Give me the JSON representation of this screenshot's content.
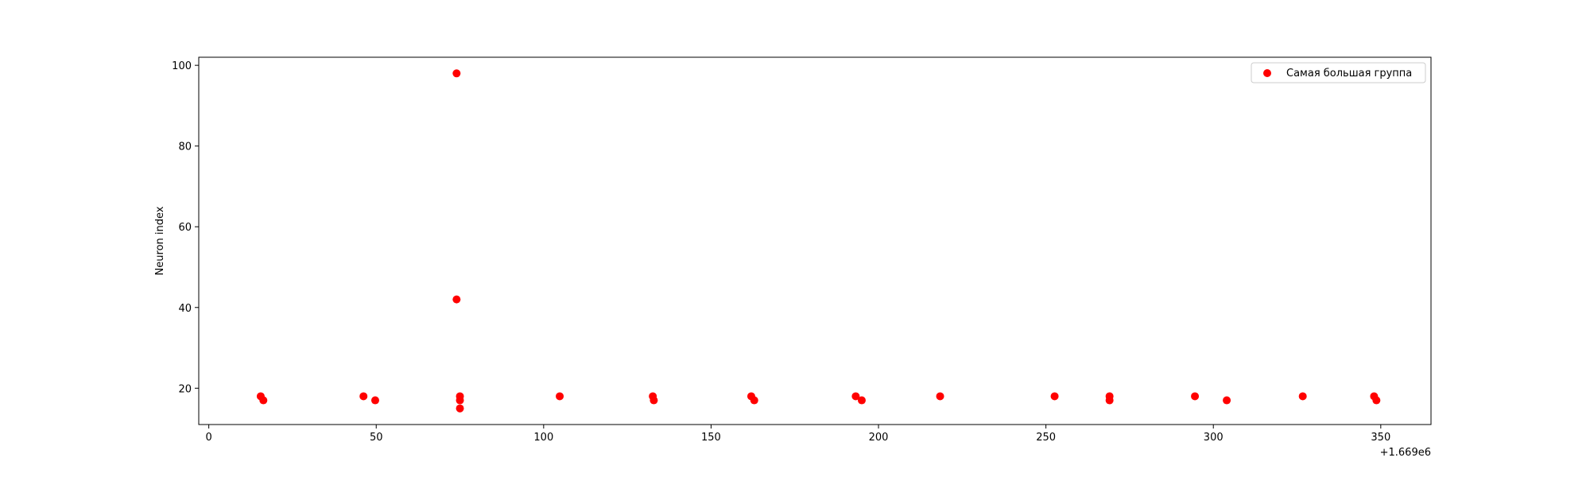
{
  "chart_data": {
    "type": "scatter",
    "xlabel": "",
    "ylabel": "Neuron index",
    "x_offset_label": "+1.669e6",
    "xlim": [
      -3,
      365
    ],
    "ylim": [
      11,
      102
    ],
    "xticks": [
      0,
      50,
      100,
      150,
      200,
      250,
      300,
      350
    ],
    "yticks": [
      20,
      40,
      60,
      80,
      100
    ],
    "legend_position": "top-right",
    "grid": false,
    "series": [
      {
        "name": "Самая большая группа",
        "color": "#ff0000",
        "points": [
          [
            15.5,
            18
          ],
          [
            16.3,
            17
          ],
          [
            46.2,
            18
          ],
          [
            49.7,
            17
          ],
          [
            74.0,
            98
          ],
          [
            74.0,
            42
          ],
          [
            75.0,
            18
          ],
          [
            75.0,
            17
          ],
          [
            75.0,
            15
          ],
          [
            104.8,
            18
          ],
          [
            132.6,
            18
          ],
          [
            132.9,
            17
          ],
          [
            162.0,
            18
          ],
          [
            162.9,
            17
          ],
          [
            193.2,
            18
          ],
          [
            195.0,
            17
          ],
          [
            218.4,
            18
          ],
          [
            252.6,
            18
          ],
          [
            269.0,
            18
          ],
          [
            269.0,
            17
          ],
          [
            294.5,
            18
          ],
          [
            304.0,
            17
          ],
          [
            326.7,
            18
          ],
          [
            348.0,
            18
          ],
          [
            348.7,
            17
          ]
        ]
      }
    ]
  }
}
